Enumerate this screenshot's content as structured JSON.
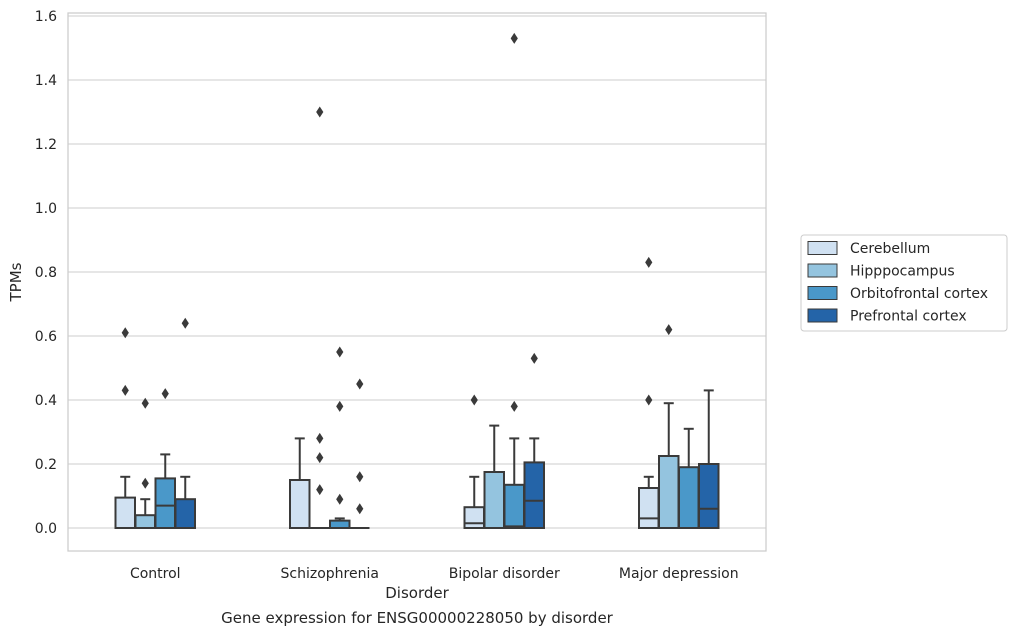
{
  "chart_data": {
    "type": "box",
    "title": "",
    "xlabel": "Disorder",
    "ylabel": "TPMs",
    "caption": "Gene expression for ENSG00000228050 by disorder",
    "categories": [
      "Control",
      "Schizophrenia",
      "Bipolar disorder",
      "Major depression"
    ],
    "ylim": [
      -0.07,
      1.61
    ],
    "yticks": [
      0.0,
      0.2,
      0.4,
      0.6,
      0.8,
      1.0,
      1.2,
      1.4,
      1.6
    ],
    "ytick_labels": [
      "0.0",
      "0.2",
      "0.4",
      "0.6",
      "0.8",
      "1.0",
      "1.2",
      "1.4",
      "1.6"
    ],
    "grid": "horizontal",
    "legend_position": "right",
    "series": [
      {
        "name": "Cerebellum",
        "color": "#d0e1f2",
        "boxes": [
          {
            "q1": 0.0,
            "median": 0.0,
            "q3": 0.095,
            "whisker_low": 0.0,
            "whisker_high": 0.16,
            "outliers": [
              0.43,
              0.61
            ]
          },
          {
            "q1": 0.0,
            "median": 0.0,
            "q3": 0.15,
            "whisker_low": 0.0,
            "whisker_high": 0.28,
            "outliers": []
          },
          {
            "q1": 0.0,
            "median": 0.015,
            "q3": 0.065,
            "whisker_low": 0.0,
            "whisker_high": 0.16,
            "outliers": [
              0.4
            ]
          },
          {
            "q1": 0.0,
            "median": 0.03,
            "q3": 0.125,
            "whisker_low": 0.0,
            "whisker_high": 0.16,
            "outliers": [
              0.4,
              0.83
            ]
          }
        ]
      },
      {
        "name": "Hipppocampus",
        "color": "#94c4df",
        "boxes": [
          {
            "q1": 0.0,
            "median": 0.0,
            "q3": 0.04,
            "whisker_low": 0.0,
            "whisker_high": 0.09,
            "outliers": [
              0.14,
              0.39
            ]
          },
          {
            "q1": 0.0,
            "median": 0.0,
            "q3": 0.0,
            "whisker_low": 0.0,
            "whisker_high": 0.0,
            "outliers": [
              0.12,
              0.22,
              0.28,
              1.3
            ]
          },
          {
            "q1": 0.0,
            "median": 0.0,
            "q3": 0.175,
            "whisker_low": 0.0,
            "whisker_high": 0.32,
            "outliers": []
          },
          {
            "q1": 0.0,
            "median": 0.0,
            "q3": 0.225,
            "whisker_low": 0.0,
            "whisker_high": 0.39,
            "outliers": [
              0.62
            ]
          }
        ]
      },
      {
        "name": "Orbitofrontal cortex",
        "color": "#4a98c9",
        "boxes": [
          {
            "q1": 0.0,
            "median": 0.07,
            "q3": 0.155,
            "whisker_low": 0.0,
            "whisker_high": 0.23,
            "outliers": [
              0.42
            ]
          },
          {
            "q1": 0.0,
            "median": 0.0,
            "q3": 0.023,
            "whisker_low": 0.0,
            "whisker_high": 0.03,
            "outliers": [
              0.09,
              0.38,
              0.55
            ]
          },
          {
            "q1": 0.0,
            "median": 0.005,
            "q3": 0.135,
            "whisker_low": 0.0,
            "whisker_high": 0.28,
            "outliers": [
              0.38,
              1.53
            ]
          },
          {
            "q1": 0.0,
            "median": 0.0,
            "q3": 0.19,
            "whisker_low": 0.0,
            "whisker_high": 0.31,
            "outliers": []
          }
        ]
      },
      {
        "name": "Prefrontal cortex",
        "color": "#2464a8",
        "boxes": [
          {
            "q1": 0.0,
            "median": 0.0,
            "q3": 0.09,
            "whisker_low": 0.0,
            "whisker_high": 0.16,
            "outliers": [
              0.64
            ]
          },
          {
            "q1": 0.0,
            "median": 0.0,
            "q3": 0.0,
            "whisker_low": 0.0,
            "whisker_high": 0.0,
            "outliers": [
              0.06,
              0.16,
              0.45
            ]
          },
          {
            "q1": 0.0,
            "median": 0.085,
            "q3": 0.205,
            "whisker_low": 0.0,
            "whisker_high": 0.28,
            "outliers": [
              0.53
            ]
          },
          {
            "q1": 0.0,
            "median": 0.06,
            "q3": 0.2,
            "whisker_low": 0.0,
            "whisker_high": 0.43,
            "outliers": []
          }
        ]
      }
    ]
  }
}
